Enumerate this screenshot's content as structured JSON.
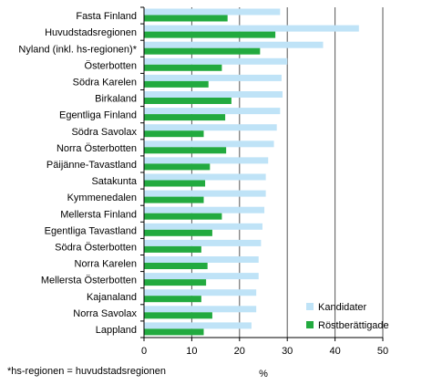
{
  "chart_data": {
    "type": "bar",
    "orientation": "horizontal",
    "categories": [
      "Fasta Finland",
      "Huvudstadsregionen",
      "Nyland (inkl. hs-regionen)*",
      "Österbotten",
      "Södra Karelen",
      "Birkaland",
      "Egentliga Finland",
      "Södra Savolax",
      "Norra Österbotten",
      "Päijänne-Tavastland",
      "Satakunta",
      "Kymmenedalen",
      "Mellersta Finland",
      "Egentliga Tavastland",
      "Södra Österbotten",
      "Norra Karelen",
      "Mellersta Österbotten",
      "Kajanaland",
      "Norra Savolax",
      "Lappland"
    ],
    "series": [
      {
        "name": "Kandidater",
        "color": "#bfe3f7",
        "values": [
          28.5,
          45.0,
          37.5,
          30.0,
          28.8,
          29.0,
          28.5,
          27.8,
          27.2,
          26.0,
          25.5,
          25.5,
          25.2,
          24.8,
          24.5,
          24.0,
          24.0,
          23.5,
          23.5,
          22.5
        ]
      },
      {
        "name": "Röstberättigade",
        "color": "#22aa3f",
        "values": [
          17.5,
          27.5,
          24.3,
          16.3,
          13.5,
          18.3,
          17.0,
          12.5,
          17.2,
          13.8,
          12.8,
          12.5,
          16.3,
          14.3,
          12.0,
          13.3,
          13.0,
          12.0,
          14.3,
          12.5
        ]
      }
    ],
    "xlim": [
      0,
      50
    ],
    "xticks": [
      "0",
      "10",
      "20",
      "30",
      "40",
      "50"
    ],
    "xlabel": "%",
    "grid": "vertical",
    "legend_position": "bottom-right",
    "footnote": "*hs-regionen = huvudstadsregionen"
  }
}
